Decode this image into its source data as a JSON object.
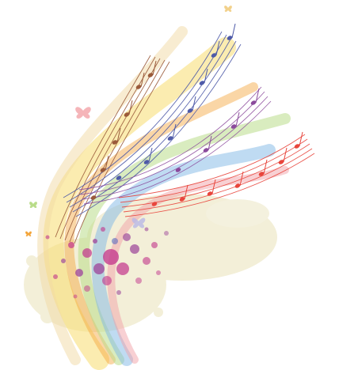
{
  "illustration": {
    "subject": "rainbow-music-staff-swirl",
    "palette": {
      "red": "#e8453c",
      "orange": "#f3a53a",
      "yellow": "#f7dc6f",
      "green": "#b9dc8a",
      "blue": "#7fb8e6",
      "indigo": "#5b6bc0",
      "purple": "#a04c9c",
      "magenta": "#c2338b",
      "pink": "#f2a2a8",
      "cream": "#efeacb",
      "brown": "#9a5a3a"
    },
    "icons": [
      "butterfly-icon",
      "music-note-icon",
      "paint-splatter-icon"
    ]
  }
}
